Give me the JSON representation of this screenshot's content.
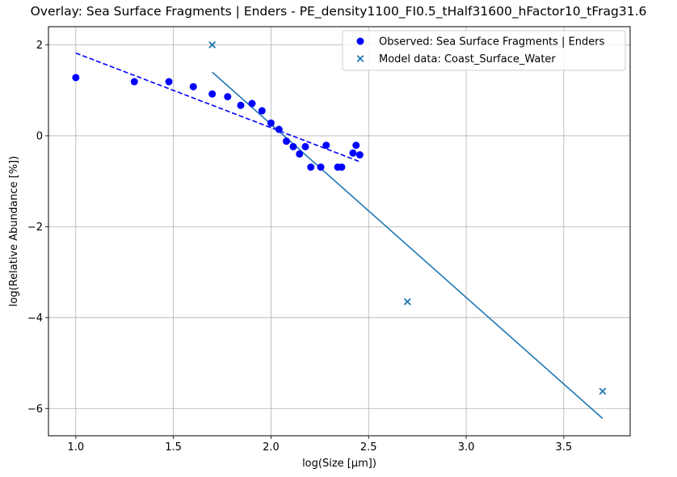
{
  "chart_data": {
    "type": "scatter",
    "title": "Overlay: Sea Surface Fragments | Enders - PE_density1100_FI0.5_tHalf31600_hFactor10_tFrag31.6",
    "xlabel": "log(Size [μm])",
    "ylabel": "log(Relative Abundance [%])",
    "xlim": [
      0.86,
      3.84
    ],
    "ylim": [
      -6.6,
      2.4
    ],
    "xticks": [
      1.0,
      1.5,
      2.0,
      2.5,
      3.0,
      3.5
    ],
    "xtick_labels": [
      "1.0",
      "1.5",
      "2.0",
      "2.5",
      "3.0",
      "3.5"
    ],
    "yticks": [
      2,
      0,
      -2,
      -4,
      -6
    ],
    "ytick_labels": [
      "2",
      "0",
      "−2",
      "−4",
      "−6"
    ],
    "grid": true,
    "legend_position": "top-right",
    "series": [
      {
        "name": "Observed: Sea Surface Fragments | Enders",
        "kind": "scatter",
        "marker": "circle",
        "color": "#0000ff",
        "x": [
          1.0,
          1.3,
          1.477,
          1.602,
          1.699,
          1.778,
          1.845,
          1.903,
          1.954,
          2.0,
          2.041,
          2.079,
          2.114,
          2.146,
          2.176,
          2.204,
          2.255,
          2.283,
          2.342,
          2.362,
          2.42,
          2.436,
          2.455
        ],
        "y": [
          1.28,
          1.19,
          1.19,
          1.08,
          0.92,
          0.86,
          0.67,
          0.71,
          0.55,
          0.28,
          0.14,
          -0.12,
          -0.24,
          -0.4,
          -0.24,
          -0.69,
          -0.69,
          -0.21,
          -0.69,
          -0.69,
          -0.38,
          -0.21,
          -0.42
        ]
      },
      {
        "name": "Model data: Coast_Surface_Water",
        "kind": "scatter",
        "marker": "x",
        "color": "#1f77b4",
        "x": [
          1.699,
          2.699,
          3.699
        ],
        "y": [
          2.0,
          -3.65,
          -5.62
        ]
      }
    ],
    "fit_lines": [
      {
        "style": "dashed",
        "color": "#0000ff",
        "x": [
          1.0,
          2.455
        ],
        "y": [
          1.82,
          -0.57
        ]
      },
      {
        "style": "solid",
        "color": "#1f77b4",
        "x": [
          1.699,
          3.699
        ],
        "y": [
          1.4,
          -6.22
        ]
      }
    ]
  }
}
